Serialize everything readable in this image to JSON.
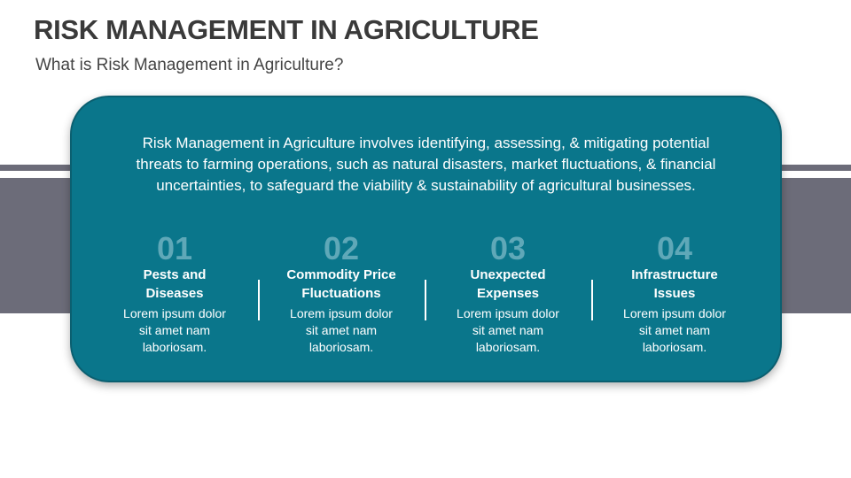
{
  "title": "RISK MANAGEMENT IN AGRICULTURE",
  "subtitle": "What is Risk Management in Agriculture?",
  "description": "Risk Management in Agriculture involves identifying, assessing, & mitigating potential threats to farming operations, such as natural disasters, market fluctuations, & financial uncertainties, to safeguard the viability & sustainability of agricultural businesses.",
  "items": [
    {
      "num": "01",
      "heading": "Pests and Diseases",
      "body": "Lorem ipsum dolor sit amet nam laboriosam."
    },
    {
      "num": "02",
      "heading": "Commodity Price Fluctuations",
      "body": "Lorem ipsum dolor sit amet nam laboriosam."
    },
    {
      "num": "03",
      "heading": "Unexpected Expenses",
      "body": "Lorem ipsum dolor sit amet nam laboriosam."
    },
    {
      "num": "04",
      "heading": "Infrastructure Issues",
      "body": "Lorem ipsum dolor sit amet nam laboriosam."
    }
  ],
  "colors": {
    "card": "#0a768b",
    "band": "#6c6c79",
    "number": "#5fa8b8"
  }
}
